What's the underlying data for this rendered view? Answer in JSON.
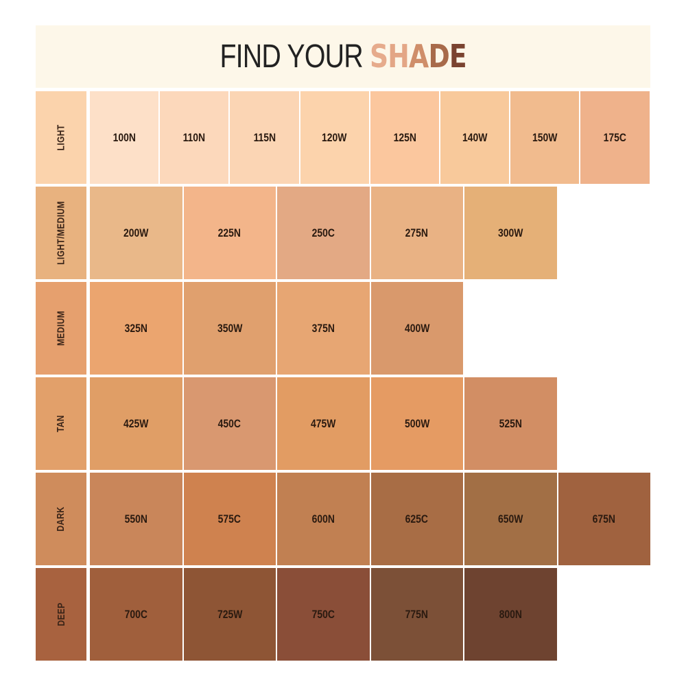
{
  "header": {
    "title_prefix": "FIND YOUR ",
    "title_highlight": [
      "S",
      "H",
      "A",
      "D",
      "E"
    ],
    "highlight_colors": [
      "#e6ab8c",
      "#e3a686",
      "#cf8e6a",
      "#a86a4a",
      "#7a4330"
    ],
    "background": "#fdf7e9"
  },
  "rows": [
    {
      "label": "LIGHT",
      "color": "#fbd3ac",
      "shades": [
        {
          "name": "100N",
          "color": "#fde0c8"
        },
        {
          "name": "110N",
          "color": "#fcd8bb"
        },
        {
          "name": "115N",
          "color": "#fbd5b4"
        },
        {
          "name": "120W",
          "color": "#fcd3ac"
        },
        {
          "name": "125N",
          "color": "#fbc79e"
        },
        {
          "name": "140W",
          "color": "#f8c99b"
        },
        {
          "name": "150W",
          "color": "#f1bb8e"
        },
        {
          "name": "175C",
          "color": "#efb28b"
        }
      ]
    },
    {
      "label": "LIGHT/MEDIUM",
      "color": "#e8b27f",
      "shades": [
        {
          "name": "200W",
          "color": "#e9b889"
        },
        {
          "name": "225N",
          "color": "#f3b58a"
        },
        {
          "name": "250C",
          "color": "#e3a984"
        },
        {
          "name": "275N",
          "color": "#e9b284"
        },
        {
          "name": "300W",
          "color": "#e5b077"
        }
      ]
    },
    {
      "label": "MEDIUM",
      "color": "#e6a06e",
      "shades": [
        {
          "name": "325N",
          "color": "#eba56f"
        },
        {
          "name": "350W",
          "color": "#e0a06e"
        },
        {
          "name": "375N",
          "color": "#e7a673"
        },
        {
          "name": "400W",
          "color": "#d9996c"
        }
      ]
    },
    {
      "label": "TAN",
      "color": "#e2a06a",
      "shades": [
        {
          "name": "425W",
          "color": "#e09e66"
        },
        {
          "name": "450C",
          "color": "#d99870"
        },
        {
          "name": "475W",
          "color": "#e29c63"
        },
        {
          "name": "500W",
          "color": "#e59b63"
        },
        {
          "name": "525N",
          "color": "#d28e64"
        }
      ]
    },
    {
      "label": "DARK",
      "color": "#cf8c5c",
      "shades": [
        {
          "name": "550N",
          "color": "#c9865a"
        },
        {
          "name": "575C",
          "color": "#cf824f"
        },
        {
          "name": "600N",
          "color": "#c18052"
        },
        {
          "name": "625C",
          "color": "#a86d45"
        },
        {
          "name": "650W",
          "color": "#a26f45"
        },
        {
          "name": "675N",
          "color": "#a0623f"
        }
      ]
    },
    {
      "label": "DEEP",
      "color": "#a8623f",
      "shades": [
        {
          "name": "700C",
          "color": "#a05f3c"
        },
        {
          "name": "725W",
          "color": "#8e5535"
        },
        {
          "name": "750C",
          "color": "#8a4e38"
        },
        {
          "name": "775N",
          "color": "#7c5037"
        },
        {
          "name": "800N",
          "color": "#6e4330"
        }
      ]
    }
  ]
}
